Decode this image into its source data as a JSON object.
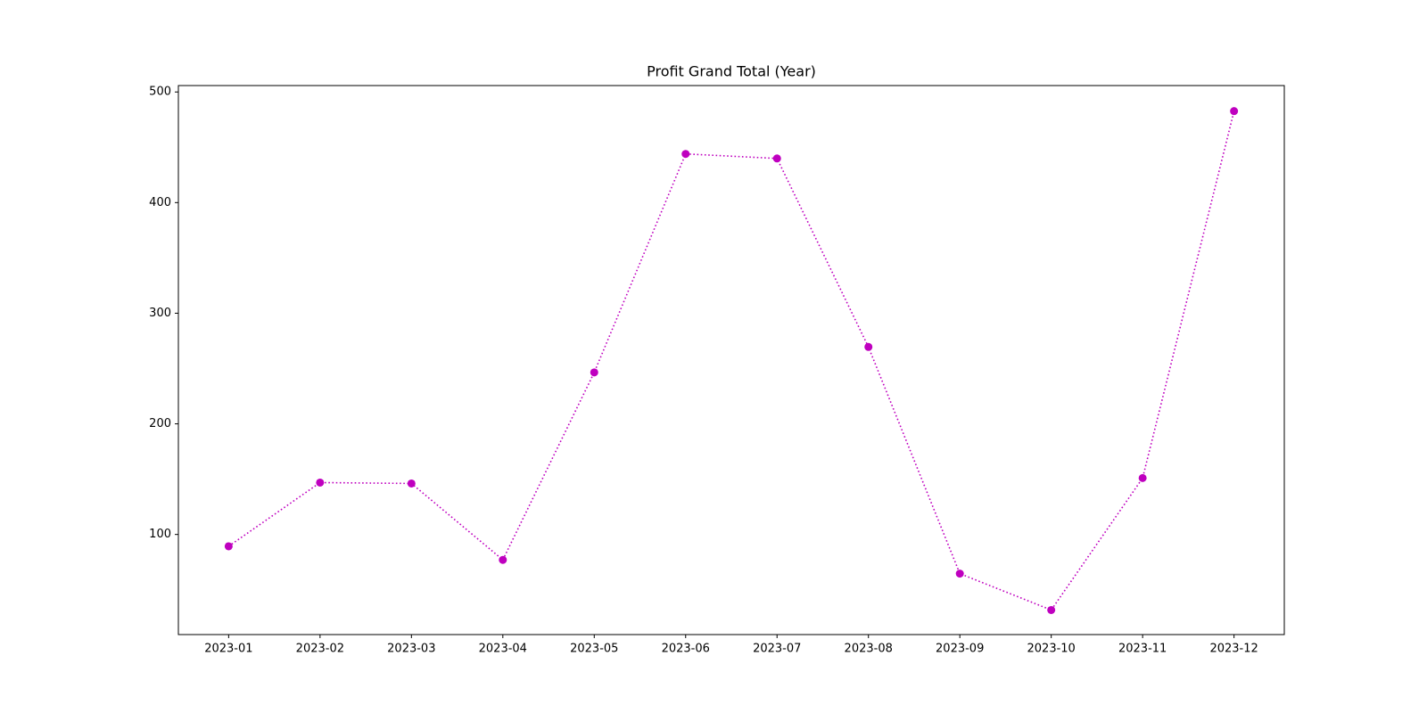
{
  "chart_data": {
    "type": "line",
    "title": "Profit Grand Total (Year)",
    "categories": [
      "2023-01",
      "2023-02",
      "2023-03",
      "2023-04",
      "2023-05",
      "2023-06",
      "2023-07",
      "2023-08",
      "2023-09",
      "2023-10",
      "2023-11",
      "2023-12"
    ],
    "values": [
      89.3,
      146.9,
      146.1,
      77.0,
      246.5,
      444.0,
      439.9,
      269.5,
      64.6,
      31.7,
      151.0,
      482.7
    ],
    "color": "#bf00bf",
    "line_style": "dotted",
    "marker": "circle",
    "ylim": [
      9.5,
      505.8
    ],
    "yticks": [
      100,
      200,
      300,
      400,
      500
    ],
    "grid": false
  }
}
